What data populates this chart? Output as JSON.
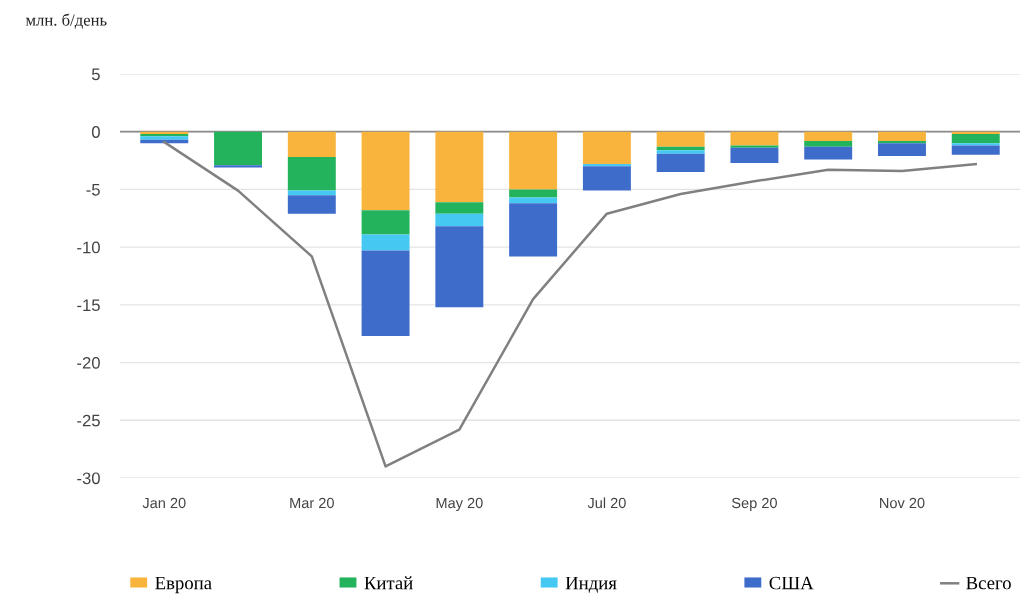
{
  "chart_data": {
    "type": "bar",
    "stacked": true,
    "ylabel": "млн. б/день",
    "categories": [
      "Jan 20",
      null,
      "Mar 20",
      null,
      "May 20",
      null,
      "Jul 20",
      null,
      "Sep 20",
      null,
      "Nov 20",
      null
    ],
    "series": [
      {
        "name": "Европа",
        "color": "#f9b43e",
        "values": [
          -0.2,
          null,
          -2.2,
          -6.8,
          -6.1,
          -5.0,
          -2.8,
          -1.3,
          -1.2,
          -0.8,
          -0.8,
          -0.2
        ]
      },
      {
        "name": "Китай",
        "color": "#22b35c",
        "values": [
          -0.2,
          -2.9,
          -2.9,
          -2.1,
          -1.0,
          -0.7,
          null,
          -0.3,
          -0.2,
          -0.5,
          -0.2,
          -0.8
        ]
      },
      {
        "name": "Индия",
        "color": "#45c9f2",
        "values": [
          -0.3,
          null,
          -0.4,
          -1.4,
          -1.1,
          -0.5,
          -0.2,
          -0.3,
          null,
          null,
          null,
          -0.2
        ]
      },
      {
        "name": "США",
        "color": "#3d6ccb",
        "values": [
          -0.3,
          -0.2,
          -1.6,
          -7.4,
          -7.0,
          -4.6,
          -2.1,
          -1.6,
          -1.3,
          -1.1,
          -1.1,
          -0.8
        ]
      },
      {
        "name": "Всего",
        "type": "line",
        "color": "#808080",
        "values": [
          -0.9,
          -5.1,
          -10.8,
          -29.0,
          -25.8,
          -14.5,
          -7.1,
          -5.4,
          -4.3,
          -3.3,
          -3.4,
          -2.8
        ]
      }
    ],
    "ylim": [
      -30,
      5
    ],
    "yticks": [
      5,
      0,
      -5,
      -10,
      -15,
      -20,
      -25,
      -30
    ],
    "ref_lines": [
      {
        "axis": "y",
        "value": 0,
        "color": "#8c8c8c"
      }
    ],
    "grid": "y",
    "legend": "bottom",
    "marker": "none",
    "line_style": "solid"
  }
}
